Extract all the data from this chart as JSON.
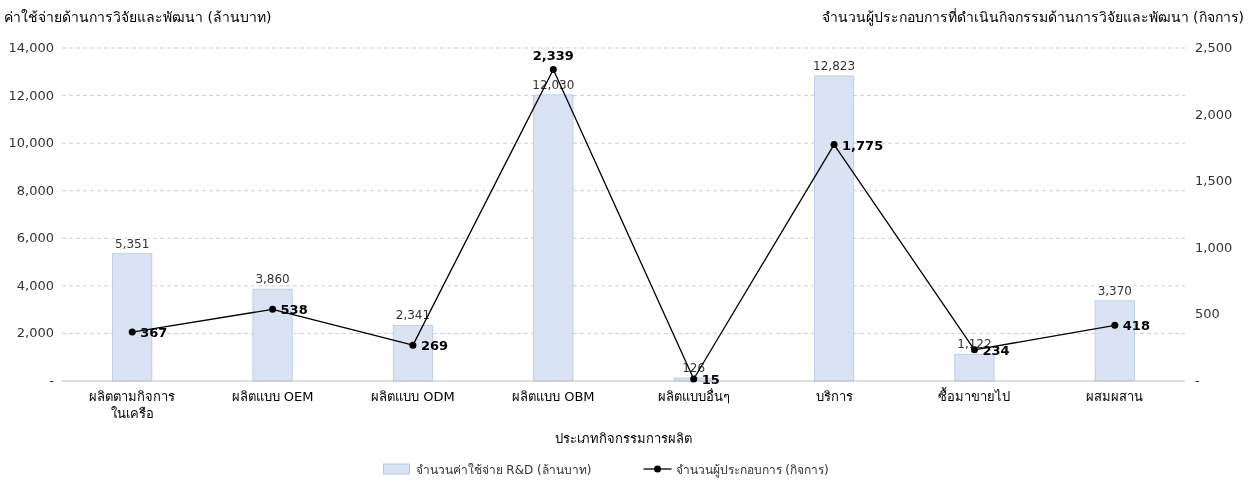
{
  "chart_data": {
    "type": "bar",
    "ylabel": "ค่าใช้จ่ายด้านการวิจัยและพัฒนา  (ล้านบาท)",
    "y2label": "จำนวนผู้ประกอบการที่ดำเนินกิจกรรมด้านการวิจัยและพัฒนา (กิจการ)",
    "xlabel": "ประเภทกิจกรรมการผลิต",
    "categories": [
      "ผลิตตามกิจการ\nในเครือ",
      "ผลิตแบบ OEM",
      "ผลิตแบบ ODM",
      "ผลิตแบบ OBM",
      "ผลิตแบบอื่นๆ",
      "บริการ",
      "ซื้อมาขายไป",
      "ผสมผสาน"
    ],
    "series": [
      {
        "name": "จำนวนค่าใช้จ่าย R&D (ล้านบาท)",
        "color": "#dae3f3",
        "values": [
          5351,
          3860,
          2341,
          12030,
          126,
          12823,
          1122,
          3370
        ],
        "value_labels": [
          "5,351",
          "3,860",
          "2,341",
          "12,030",
          "126",
          "12,823",
          "1,122",
          "3,370"
        ]
      },
      {
        "name": "จำนวนผู้ประกอบการ (กิจการ)",
        "type": "line",
        "axis": "y2",
        "color": "#000000",
        "marker": "circle",
        "values": [
          367,
          538,
          269,
          2339,
          15,
          1775,
          234,
          418
        ],
        "value_labels": [
          "367",
          "538",
          "269",
          "2,339",
          "15",
          "1,775",
          "234",
          "418"
        ]
      }
    ],
    "ylim": [
      0,
      14000
    ],
    "yticks": [
      {
        "value": 0,
        "label": "-"
      },
      {
        "value": 2000,
        "label": "2,000"
      },
      {
        "value": 4000,
        "label": "4,000"
      },
      {
        "value": 6000,
        "label": "6,000"
      },
      {
        "value": 8000,
        "label": "8,000"
      },
      {
        "value": 10000,
        "label": "10,000"
      },
      {
        "value": 12000,
        "label": "12,000"
      },
      {
        "value": 14000,
        "label": "14,000"
      }
    ],
    "y2lim": [
      0,
      2500
    ],
    "y2ticks": [
      {
        "value": 0,
        "label": "-"
      },
      {
        "value": 500,
        "label": "500"
      },
      {
        "value": 1000,
        "label": "1,000"
      },
      {
        "value": 1500,
        "label": "1,500"
      },
      {
        "value": 2000,
        "label": "2,000"
      },
      {
        "value": 2500,
        "label": "2,500"
      }
    ],
    "grid": "y",
    "legend": "bottom"
  }
}
